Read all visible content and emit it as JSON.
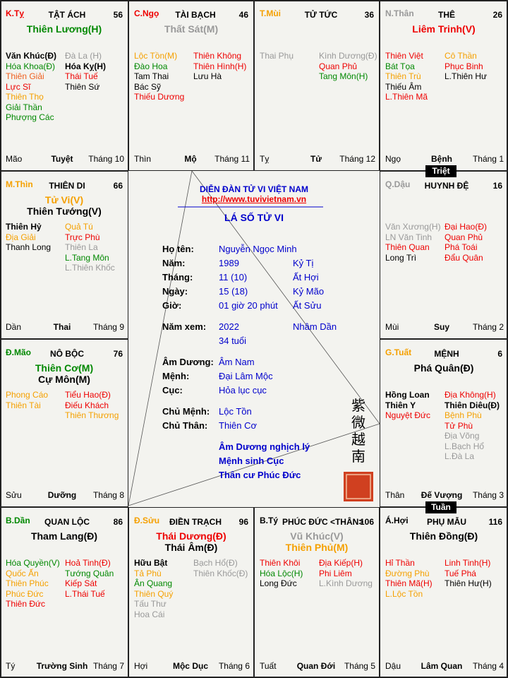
{
  "triet": "Triệt",
  "tuan": "Tuần",
  "palaces": [
    {
      "label": [
        "K.Tỵ",
        "#e00"
      ],
      "name": "TẬT ÁCH",
      "number": 56,
      "main": [
        [
          "Thiên Lương(H)",
          "#080"
        ]
      ],
      "left": [
        [
          "Văn Khúc(Đ)",
          "#000"
        ],
        [
          "Hóa Khoa(Đ)",
          "#080"
        ],
        [
          "Thiên Giải",
          "#f06020"
        ],
        [
          "Lực Sĩ",
          "#e00"
        ],
        [
          "Thiên Thọ",
          "#f5a000"
        ],
        [
          "Giải Thần",
          "#080"
        ],
        [
          "Phượng Các",
          "#080"
        ]
      ],
      "right": [
        [
          "Đà La (H)",
          "#999"
        ],
        [
          "Hóa Kỵ(H)",
          "#000"
        ],
        [
          "Thái Tuế",
          "#e00"
        ],
        [
          "Thiên Sứ",
          "#000"
        ]
      ],
      "branch": "Mão",
      "stage": "Tuyệt",
      "month": "Tháng 10"
    },
    {
      "label": [
        "C.Ngọ",
        "#e00"
      ],
      "name": "TÀI BẠCH",
      "number": 46,
      "main": [
        [
          "Thất Sát(M)",
          "#999"
        ]
      ],
      "left": [
        [
          "Lộc Tồn(M)",
          "#f5a000"
        ],
        [
          "Đào Hoa",
          "#080"
        ],
        [
          "Tam Thai",
          "#000"
        ],
        [
          "Bác Sỹ",
          "#000"
        ],
        [
          "Thiếu Dương",
          "#e00"
        ]
      ],
      "right": [
        [
          "Thiên Không",
          "#e00"
        ],
        [
          "Thiên Hình(H)",
          "#e00"
        ],
        [
          "Lưu Hà",
          "#000"
        ]
      ],
      "branch": "Thìn",
      "stage": "Mộ",
      "month": "Tháng 11"
    },
    {
      "label": [
        "T.Mùi",
        "#f5a000"
      ],
      "name": "TỬ TỨC",
      "number": 36,
      "main": [],
      "left": [
        [
          "Thai Phụ",
          "#999"
        ]
      ],
      "right": [
        [
          "Kình Dương(Đ)",
          "#999"
        ],
        [
          "Quan Phủ",
          "#e00"
        ],
        [
          "Tang Môn(H)",
          "#080"
        ]
      ],
      "branch": "Tỵ",
      "stage": "Tử",
      "month": "Tháng 12"
    },
    {
      "label": [
        "N.Thân",
        "#999"
      ],
      "name": "THÊ",
      "number": 26,
      "main": [
        [
          "Liêm Trinh(V)",
          "#e00"
        ]
      ],
      "left": [
        [
          "Thiên Việt",
          "#e00"
        ],
        [
          "Bát Tọa",
          "#080"
        ],
        [
          "Thiên Trù",
          "#f5a000"
        ],
        [
          "Thiếu Âm",
          "#000"
        ],
        [
          "L.Thiên Mã",
          "#e00"
        ]
      ],
      "right": [
        [
          "Cô Thần",
          "#f5a000"
        ],
        [
          "Phục Binh",
          "#e00"
        ],
        [
          "L.Thiên Hư",
          "#000"
        ]
      ],
      "branch": "Ngọ",
      "stage": "Bệnh",
      "month": "Tháng 1"
    },
    {
      "label": [
        "M.Thìn",
        "#f5a000"
      ],
      "name": "THIÊN DI",
      "number": 66,
      "main": [
        [
          "Tử Vi(V)",
          "#f5a000"
        ],
        [
          "Thiên Tướng(V)",
          "#000"
        ]
      ],
      "left": [
        [
          "Thiên Hỷ",
          "#000"
        ],
        [
          "Địa Giải",
          "#f5a000"
        ],
        [
          "Thanh Long",
          "#000"
        ]
      ],
      "right": [
        [
          "Quả Tú",
          "#f5a000"
        ],
        [
          "Trực Phù",
          "#e00"
        ],
        [
          "Thiên La",
          "#999"
        ],
        [
          "L.Tang Môn",
          "#080"
        ],
        [
          "L.Thiên Khốc",
          "#999"
        ]
      ],
      "branch": "Dần",
      "stage": "Thai",
      "month": "Tháng 9"
    },
    {
      "label": [
        "Q.Dậu",
        "#999"
      ],
      "name": "HUYNH ĐỆ",
      "number": 16,
      "main": [],
      "left": [
        [
          "Văn Xương(H)",
          "#999"
        ],
        [
          "LN Văn Tinh",
          "#999"
        ],
        [
          "Thiên Quan",
          "#e00"
        ],
        [
          "Long Trì",
          "#000"
        ]
      ],
      "right": [
        [
          "Đại Hao(Đ)",
          "#e00"
        ],
        [
          "Quan Phủ",
          "#e00"
        ],
        [
          "Phá Toái",
          "#e00"
        ],
        [
          "Đẩu Quân",
          "#e00"
        ]
      ],
      "branch": "Mùi",
      "stage": "Suy",
      "month": "Tháng 2"
    },
    {
      "label": [
        "Đ.Mão",
        "#080"
      ],
      "name": "NÔ BỘC",
      "number": 76,
      "main": [
        [
          "Thiên Cơ(M)",
          "#080"
        ],
        [
          "Cự Môn(M)",
          "#000"
        ]
      ],
      "left": [
        [
          "Phong Cáo",
          "#f5a000"
        ],
        [
          "Thiên Tài",
          "#f5a000"
        ]
      ],
      "right": [
        [
          "Tiểu Hao(Đ)",
          "#e00"
        ],
        [
          "Điếu Khách",
          "#e00"
        ],
        [
          "Thiên Thương",
          "#f5a000"
        ]
      ],
      "branch": "Sửu",
      "stage": "Dưỡng",
      "month": "Tháng 8"
    },
    {
      "label": [
        "G.Tuất",
        "#f5a000"
      ],
      "name": "MỆNH",
      "number": 6,
      "main": [
        [
          "Phá Quân(Đ)",
          "#000"
        ]
      ],
      "left": [
        [
          "Hồng Loan",
          "#000"
        ],
        [
          "Thiên Y",
          "#000"
        ],
        [
          "Nguyệt Đức",
          "#e00"
        ]
      ],
      "right": [
        [
          "Địa Không(H)",
          "#e00"
        ],
        [
          "Thiên Diêu(Đ)",
          "#000"
        ],
        [
          "Bệnh Phù",
          "#f5a000"
        ],
        [
          "Tử Phù",
          "#e00"
        ],
        [
          "Địa Võng",
          "#999"
        ],
        [
          "L.Bạch Hổ",
          "#999"
        ],
        [
          "L.Đà La",
          "#999"
        ]
      ],
      "branch": "Thân",
      "stage": "Đế Vượng",
      "month": "Tháng 3"
    },
    {
      "label": [
        "B.Dần",
        "#080"
      ],
      "name": "QUAN LỘC",
      "number": 86,
      "main": [
        [
          "Tham Lang(Đ)",
          "#000"
        ]
      ],
      "left": [
        [
          "Hóa Quyền(V)",
          "#080"
        ],
        [
          "Quốc Ấn",
          "#f5a000"
        ],
        [
          "Thiên Phúc",
          "#f5a000"
        ],
        [
          "Phúc Đức",
          "#f5a000"
        ],
        [
          "Thiên Đức",
          "#e00"
        ]
      ],
      "right": [
        [
          "Hoả Tinh(Đ)",
          "#e00"
        ],
        [
          "Tướng Quân",
          "#080"
        ],
        [
          "Kiếp Sát",
          "#e00"
        ],
        [
          "L.Thái Tuế",
          "#e00"
        ]
      ],
      "branch": "Tý",
      "stage": "Trường Sinh",
      "month": "Tháng 7"
    },
    {
      "label": [
        "Đ.Sửu",
        "#f5a000"
      ],
      "name": "ĐIỀN TRẠCH",
      "number": 96,
      "main": [
        [
          "Thái Dương(Đ)",
          "#e00"
        ],
        [
          "Thái Âm(Đ)",
          "#000"
        ]
      ],
      "left": [
        [
          "Hữu Bật",
          "#000"
        ],
        [
          "Tả Phù",
          "#f5a000"
        ],
        [
          "Ân Quang",
          "#080"
        ],
        [
          "Thiên Quý",
          "#f5a000"
        ],
        [
          "Tấu Thư",
          "#999"
        ],
        [
          "Hoa Cái",
          "#999"
        ]
      ],
      "right": [
        [
          "Bạch Hổ(Đ)",
          "#999"
        ],
        [
          "Thiên Khốc(Đ)",
          "#999"
        ]
      ],
      "branch": "Hợi",
      "stage": "Mộc Dục",
      "month": "Tháng 6"
    },
    {
      "label": [
        "B.Tý",
        "#000"
      ],
      "name": "PHÚC ĐỨC <THÂN>",
      "number": 106,
      "main": [
        [
          "Vũ Khúc(V)",
          "#999"
        ],
        [
          "Thiên Phủ(M)",
          "#f5a000"
        ]
      ],
      "left": [
        [
          "Thiên Khôi",
          "#e00"
        ],
        [
          "Hóa Lộc(H)",
          "#080"
        ],
        [
          "Long Đức",
          "#000"
        ]
      ],
      "right": [
        [
          "Địa Kiếp(H)",
          "#e00"
        ],
        [
          "Phi Liêm",
          "#e00"
        ],
        [
          "L.Kình Dương",
          "#999"
        ]
      ],
      "branch": "Tuất",
      "stage": "Quan Đới",
      "month": "Tháng 5"
    },
    {
      "label": [
        "Á.Hợi",
        "#000"
      ],
      "name": "PHỤ MẪU",
      "number": 116,
      "main": [
        [
          "Thiên Đồng(Đ)",
          "#000"
        ]
      ],
      "left": [
        [
          "Hỉ Thần",
          "#e00"
        ],
        [
          "Đường Phù",
          "#f5a000"
        ],
        [
          "Thiên Mã(H)",
          "#e00"
        ],
        [
          "L.Lộc Tồn",
          "#f5a000"
        ]
      ],
      "right": [
        [
          "Linh Tinh(H)",
          "#e00"
        ],
        [
          "Tuế Phá",
          "#e00"
        ],
        [
          "Thiên Hư(H)",
          "#000"
        ]
      ],
      "branch": "Dậu",
      "stage": "Lâm Quan",
      "month": "Tháng 4"
    }
  ],
  "center": {
    "forum": "DIỄN ĐÀN TỬ VI VIỆT NAM",
    "url": "http://www.tuvivietnam.vn",
    "title": "LÁ SỐ TỬ VI",
    "rows": [
      {
        "label": "Họ tên:",
        "value": "Nguyễn Ngọc Minh"
      },
      {
        "label": "Năm:",
        "value": "1989",
        "extra": "Kỷ Tị"
      },
      {
        "label": "Tháng:",
        "value": "11 (10)",
        "extra": "Ất Hợi"
      },
      {
        "label": "Ngày:",
        "value": "15 (18)",
        "extra": "Kỷ Mão"
      },
      {
        "label": "Giờ:",
        "value": "01 giờ 20 phút",
        "extra": "Ất Sửu"
      },
      {
        "label": "Năm xem:",
        "value": "2022",
        "extra": "Nhâm Dần"
      },
      {
        "value": "34 tuổi"
      },
      {
        "label": "Âm Dương:",
        "value": "Âm Nam"
      },
      {
        "label": "Mệnh:",
        "value": "Đại Lâm Mộc"
      },
      {
        "label": "Cục:",
        "value": "Hỏa lục cục"
      },
      {
        "label": "Chủ Mệnh:",
        "value": "Lộc Tồn"
      },
      {
        "label": "Chủ Thân:",
        "value": "Thiên Cơ"
      }
    ],
    "notes": [
      "Âm Dương nghịch lý",
      "Mệnh sinh Cục",
      "Thân cư Phúc Đức"
    ],
    "seal": [
      "紫",
      "微",
      "越",
      "南"
    ]
  }
}
